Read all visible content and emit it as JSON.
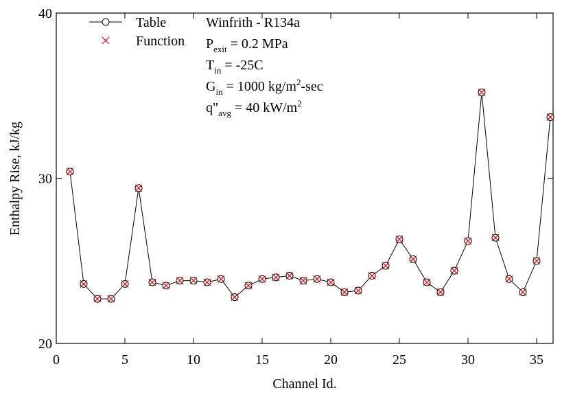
{
  "chart_data": {
    "type": "line",
    "xlabel": "Channel Id.",
    "ylabel": "Enthalpy Rise, kJ/kg",
    "x": [
      1,
      2,
      3,
      4,
      5,
      6,
      7,
      8,
      9,
      10,
      11,
      12,
      13,
      14,
      15,
      16,
      17,
      18,
      19,
      20,
      21,
      22,
      23,
      24,
      25,
      26,
      27,
      28,
      29,
      30,
      31,
      32,
      33,
      34,
      35,
      36
    ],
    "series": [
      {
        "name": "Table",
        "color": "#000000",
        "marker": "circle",
        "values": [
          30.4,
          23.6,
          22.7,
          22.7,
          23.6,
          29.4,
          23.7,
          23.5,
          23.8,
          23.8,
          23.7,
          23.9,
          22.8,
          23.5,
          23.9,
          24.0,
          24.1,
          23.8,
          23.9,
          23.7,
          23.1,
          23.2,
          24.1,
          24.7,
          26.3,
          25.1,
          23.7,
          23.1,
          24.4,
          26.2,
          35.2,
          26.4,
          23.9,
          23.1,
          25.0,
          33.7
        ]
      },
      {
        "name": "Function",
        "color": "#ff0000",
        "marker": "cross",
        "values": [
          30.4,
          23.6,
          22.7,
          22.7,
          23.6,
          29.4,
          23.7,
          23.5,
          23.8,
          23.8,
          23.7,
          23.9,
          22.8,
          23.5,
          23.9,
          24.0,
          24.1,
          23.8,
          23.9,
          23.7,
          23.1,
          23.2,
          24.1,
          24.7,
          26.3,
          25.1,
          23.7,
          23.1,
          24.4,
          26.2,
          35.2,
          26.4,
          23.9,
          23.1,
          25.0,
          33.7
        ]
      }
    ],
    "xlim": [
      0,
      36.2
    ],
    "xticks": [
      0,
      5,
      10,
      15,
      20,
      25,
      30,
      35
    ],
    "ylim": [
      20,
      40
    ],
    "yticks": [
      20,
      30,
      40
    ],
    "annotations": [
      [
        {
          "text": "Winfrith - R134a",
          "style": "normal"
        }
      ],
      [
        {
          "text": "P",
          "style": "normal"
        },
        {
          "text": "exit",
          "style": "sub"
        },
        {
          "text": " = 0.2 MPa",
          "style": "normal"
        }
      ],
      [
        {
          "text": "T",
          "style": "normal"
        },
        {
          "text": "in",
          "style": "sub"
        },
        {
          "text": " =  -25C",
          "style": "normal"
        }
      ],
      [
        {
          "text": "G",
          "style": "normal"
        },
        {
          "text": "in",
          "style": "sub"
        },
        {
          "text": " = 1000 kg/m",
          "style": "normal"
        },
        {
          "text": "2",
          "style": "sup"
        },
        {
          "text": "-sec",
          "style": "normal"
        }
      ],
      [
        {
          "text": "q\"",
          "style": "normal"
        },
        {
          "text": "avg",
          "style": "sub"
        },
        {
          "text": " = 40 kW/m",
          "style": "normal"
        },
        {
          "text": "2",
          "style": "sup"
        }
      ]
    ]
  }
}
